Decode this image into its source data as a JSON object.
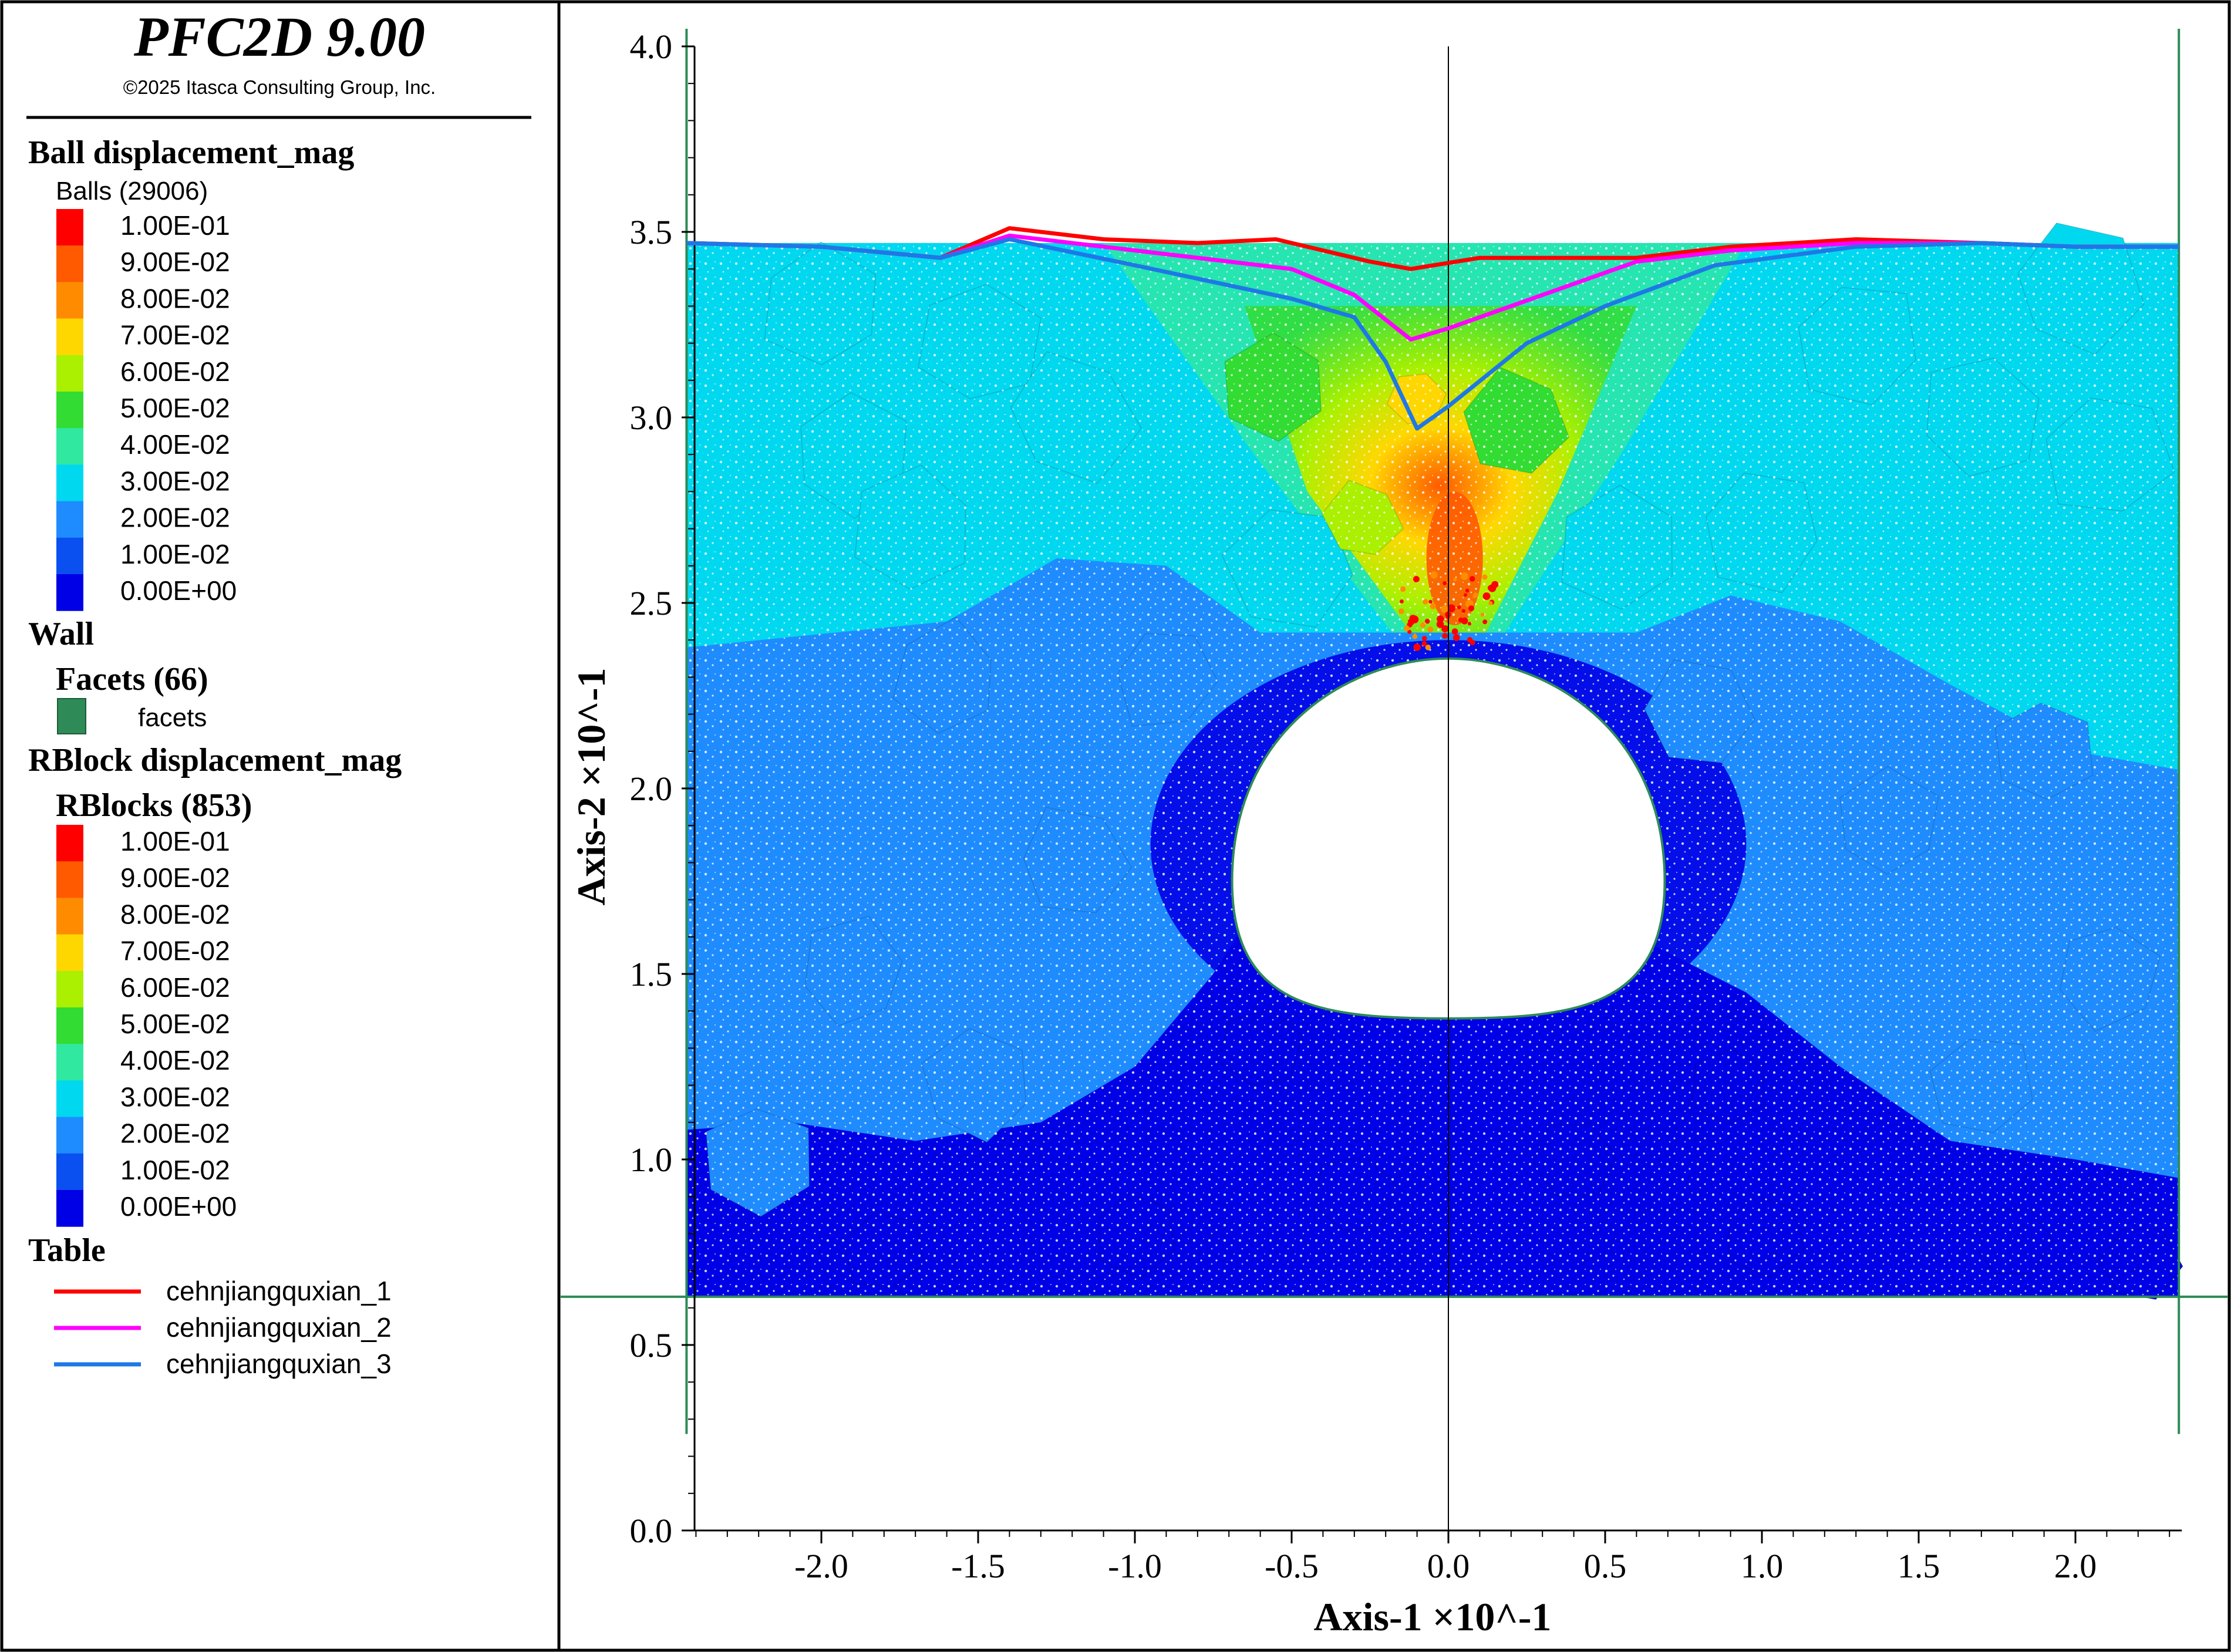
{
  "app": {
    "title": "PFC2D 9.00",
    "copyright": "©2025 Itasca Consulting Group, Inc."
  },
  "legend": {
    "ball_section_title": "Ball displacement_mag",
    "ball_subtitle": "Balls (29006)",
    "wall_section_title": "Wall",
    "facets_title": "Facets (66)",
    "facets_label": "facets",
    "facet_color": "#2e8b57",
    "rblock_section_title": "RBlock displacement_mag",
    "rblock_subtitle": "RBlocks (853)",
    "table_section_title": "Table",
    "color_scale": [
      {
        "value": "1.00E-01",
        "color": "#ff0000"
      },
      {
        "value": "9.00E-02",
        "color": "#ff5a00"
      },
      {
        "value": "8.00E-02",
        "color": "#ff8c00"
      },
      {
        "value": "7.00E-02",
        "color": "#ffd700"
      },
      {
        "value": "6.00E-02",
        "color": "#aaf000"
      },
      {
        "value": "5.00E-02",
        "color": "#32dc32"
      },
      {
        "value": "4.00E-02",
        "color": "#30e8a0"
      },
      {
        "value": "3.00E-02",
        "color": "#00d8f0"
      },
      {
        "value": "2.00E-02",
        "color": "#1e8cff"
      },
      {
        "value": "1.00E-02",
        "color": "#0a50f0"
      },
      {
        "value": "0.00E+00",
        "color": "#0000e6"
      }
    ],
    "table_entries": [
      {
        "name": "cehnjiangquxian_1",
        "color": "#ff0000"
      },
      {
        "name": "cehnjiangquxian_2",
        "color": "#ff00ff"
      },
      {
        "name": "cehnjiangquxian_3",
        "color": "#1e78e6"
      }
    ]
  },
  "plot": {
    "xlabel": "Axis-1 ×10^-1",
    "ylabel": "Axis-2 ×10^-1",
    "xlim": [
      -2.43,
      2.33
    ],
    "ylim": [
      0.0,
      4.0
    ],
    "x_ticks": [
      "-2.0",
      "-1.5",
      "-1.0",
      "-0.5",
      "0.0",
      "0.5",
      "1.0",
      "1.5",
      "2.0"
    ],
    "x_tick_values": [
      -2.0,
      -1.5,
      -1.0,
      -0.5,
      0.0,
      0.5,
      1.0,
      1.5,
      2.0
    ],
    "y_ticks": [
      "0.0",
      "0.5",
      "1.0",
      "1.5",
      "2.0",
      "2.5",
      "3.0",
      "3.5",
      "4.0"
    ],
    "y_tick_values": [
      0.0,
      0.5,
      1.0,
      1.5,
      2.0,
      2.5,
      3.0,
      3.5,
      4.0
    ],
    "tunnel_center_x": 0.0,
    "tunnel_crown_y": 2.35,
    "tunnel_invert_y": 1.38,
    "tunnel_half_width": 0.69,
    "model_bottom_y": 0.63,
    "model_left_x": -2.43,
    "model_right_x": 2.33
  },
  "chart_data": {
    "type": "line",
    "title": "",
    "xlabel": "Axis-1 ×10^-1",
    "ylabel": "Axis-2 ×10^-1",
    "xlim": [
      -2.43,
      2.33
    ],
    "ylim": [
      0.0,
      4.0
    ],
    "series": [
      {
        "name": "cehnjiangquxian_1",
        "color": "#ff0000",
        "x": [
          -2.43,
          -2.0,
          -1.62,
          -1.4,
          -1.1,
          -0.8,
          -0.55,
          -0.25,
          -0.12,
          0.1,
          0.4,
          0.6,
          0.9,
          1.3,
          1.7,
          2.0,
          2.33
        ],
        "y": [
          3.47,
          3.46,
          3.43,
          3.51,
          3.48,
          3.47,
          3.48,
          3.42,
          3.4,
          3.43,
          3.43,
          3.43,
          3.46,
          3.48,
          3.47,
          3.46,
          3.46
        ]
      },
      {
        "name": "cehnjiangquxian_2",
        "color": "#ff00ff",
        "x": [
          -2.43,
          -2.0,
          -1.62,
          -1.4,
          -1.0,
          -0.5,
          -0.3,
          -0.12,
          0.0,
          0.2,
          0.4,
          0.6,
          0.9,
          1.3,
          1.7,
          2.0,
          2.33
        ],
        "y": [
          3.47,
          3.46,
          3.43,
          3.49,
          3.45,
          3.4,
          3.33,
          3.21,
          3.24,
          3.3,
          3.36,
          3.42,
          3.45,
          3.47,
          3.47,
          3.46,
          3.46
        ]
      },
      {
        "name": "cehnjiangquxian_3",
        "color": "#1e78e6",
        "x": [
          -2.43,
          -2.0,
          -1.62,
          -1.4,
          -1.0,
          -0.5,
          -0.3,
          -0.2,
          -0.1,
          0.0,
          0.25,
          0.5,
          0.85,
          1.3,
          1.7,
          2.0,
          2.33
        ],
        "y": [
          3.47,
          3.46,
          3.43,
          3.48,
          3.41,
          3.32,
          3.27,
          3.15,
          2.97,
          3.03,
          3.2,
          3.3,
          3.41,
          3.46,
          3.47,
          3.46,
          3.46
        ]
      }
    ]
  }
}
